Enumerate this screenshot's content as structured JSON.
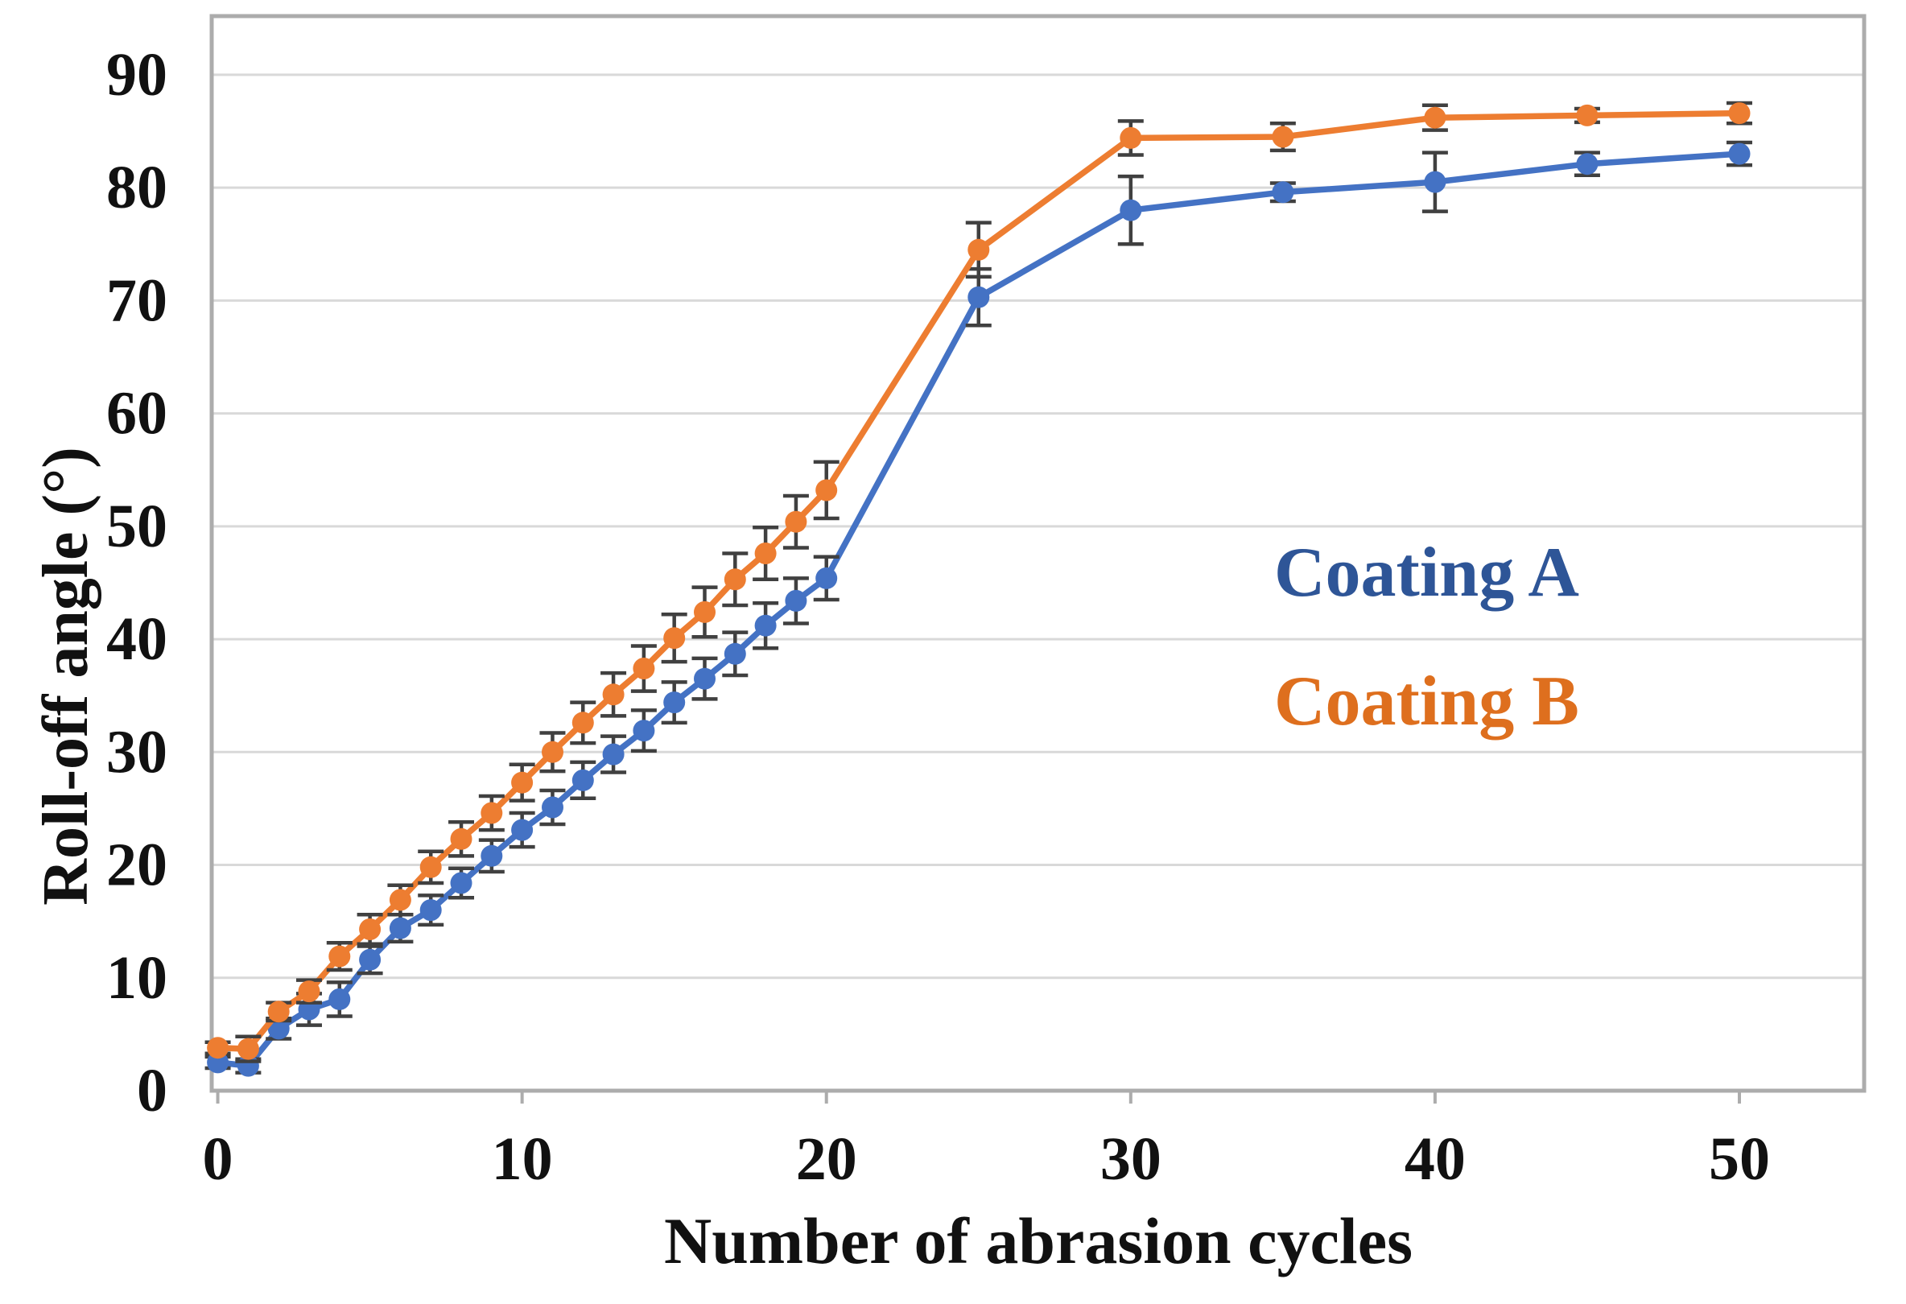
{
  "chart_data": {
    "type": "line",
    "title": "",
    "xlabel": "Number of abrasion cycles",
    "ylabel": "Roll-off angle (°)",
    "x_ticks": [
      0,
      10,
      20,
      30,
      40,
      50
    ],
    "y_ticks": [
      0,
      10,
      20,
      30,
      40,
      50,
      60,
      70,
      80,
      90
    ],
    "xlim": [
      -0.2,
      54.1
    ],
    "ylim": [
      0,
      95.2
    ],
    "grid": "horizontal-only",
    "legend_position": "inside-right",
    "series": [
      {
        "name": "Coating A",
        "color": "#4472C4",
        "marker": "circle",
        "error_bars": true,
        "x": [
          0,
          1,
          2,
          3,
          4,
          5,
          6,
          7,
          8,
          9,
          10,
          11,
          12,
          13,
          14,
          15,
          16,
          17,
          18,
          19,
          20,
          25,
          30,
          35,
          40,
          45,
          50
        ],
        "y": [
          2.5,
          2.2,
          5.5,
          7.2,
          8.1,
          11.6,
          14.4,
          16.0,
          18.4,
          20.8,
          23.1,
          25.1,
          27.5,
          29.8,
          31.9,
          34.4,
          36.5,
          38.7,
          41.2,
          43.4,
          45.4,
          70.3,
          78.0,
          79.6,
          80.5,
          82.1,
          83.0
        ],
        "err": [
          0.5,
          0.6,
          0.9,
          1.4,
          1.5,
          1.2,
          1.2,
          1.3,
          1.3,
          1.4,
          1.5,
          1.5,
          1.6,
          1.6,
          1.8,
          1.8,
          1.8,
          1.9,
          2.0,
          2.0,
          1.9,
          2.5,
          3.0,
          0.8,
          2.6,
          1.0,
          1.0
        ]
      },
      {
        "name": "Coating B",
        "color": "#ED7D31",
        "marker": "circle",
        "error_bars": true,
        "x": [
          0,
          1,
          2,
          3,
          4,
          5,
          6,
          7,
          8,
          9,
          10,
          11,
          12,
          13,
          14,
          15,
          16,
          17,
          18,
          19,
          20,
          25,
          30,
          35,
          40,
          45,
          50
        ],
        "y": [
          3.8,
          3.7,
          7.0,
          8.8,
          11.9,
          14.3,
          16.9,
          19.8,
          22.3,
          24.6,
          27.3,
          30.0,
          32.6,
          35.1,
          37.4,
          40.1,
          42.4,
          45.3,
          47.6,
          50.4,
          53.2,
          74.5,
          84.4,
          84.5,
          86.2,
          86.4,
          86.6
        ],
        "err": [
          0.5,
          1.1,
          0.8,
          1.0,
          1.2,
          1.3,
          1.3,
          1.4,
          1.5,
          1.5,
          1.6,
          1.7,
          1.8,
          1.9,
          2.0,
          2.1,
          2.2,
          2.3,
          2.3,
          2.3,
          2.5,
          2.4,
          1.5,
          1.2,
          1.1,
          0.6,
          0.9
        ]
      }
    ],
    "legend": {
      "items": [
        {
          "label": "Coating A",
          "color": "#2E5597"
        },
        {
          "label": "Coating B",
          "color": "#DE6F1E"
        }
      ]
    },
    "style": {
      "gridline_color": "#D9D9D9",
      "axis_line_color": "#ACACAC",
      "error_bar_color": "#404040",
      "tick_label_color": "#111111"
    }
  }
}
